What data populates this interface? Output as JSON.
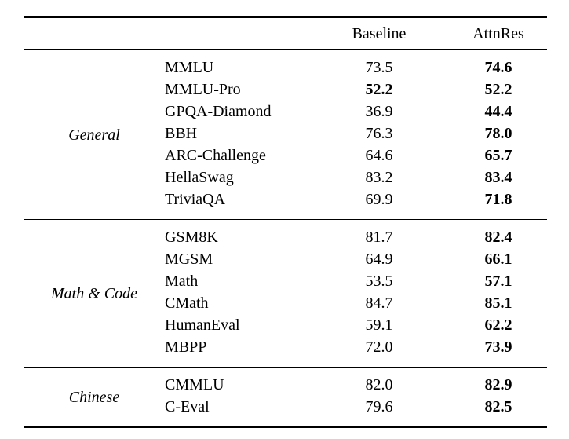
{
  "table": {
    "columns": {
      "group": "",
      "benchmark": "",
      "baseline": "Baseline",
      "attnres": "AttnRes"
    },
    "groups": [
      {
        "label": "General",
        "rows": [
          {
            "name": "MMLU",
            "baseline": "73.5",
            "baseline_bold": false,
            "attnres": "74.6",
            "attnres_bold": true
          },
          {
            "name": "MMLU-Pro",
            "baseline": "52.2",
            "baseline_bold": true,
            "attnres": "52.2",
            "attnres_bold": true
          },
          {
            "name": "GPQA-Diamond",
            "baseline": "36.9",
            "baseline_bold": false,
            "attnres": "44.4",
            "attnres_bold": true
          },
          {
            "name": "BBH",
            "baseline": "76.3",
            "baseline_bold": false,
            "attnres": "78.0",
            "attnres_bold": true
          },
          {
            "name": "ARC-Challenge",
            "baseline": "64.6",
            "baseline_bold": false,
            "attnres": "65.7",
            "attnres_bold": true
          },
          {
            "name": "HellaSwag",
            "baseline": "83.2",
            "baseline_bold": false,
            "attnres": "83.4",
            "attnres_bold": true
          },
          {
            "name": "TriviaQA",
            "baseline": "69.9",
            "baseline_bold": false,
            "attnres": "71.8",
            "attnres_bold": true
          }
        ]
      },
      {
        "label": "Math & Code",
        "rows": [
          {
            "name": "GSM8K",
            "baseline": "81.7",
            "baseline_bold": false,
            "attnres": "82.4",
            "attnres_bold": true
          },
          {
            "name": "MGSM",
            "baseline": "64.9",
            "baseline_bold": false,
            "attnres": "66.1",
            "attnres_bold": true
          },
          {
            "name": "Math",
            "baseline": "53.5",
            "baseline_bold": false,
            "attnres": "57.1",
            "attnres_bold": true
          },
          {
            "name": "CMath",
            "baseline": "84.7",
            "baseline_bold": false,
            "attnres": "85.1",
            "attnres_bold": true
          },
          {
            "name": "HumanEval",
            "baseline": "59.1",
            "baseline_bold": false,
            "attnres": "62.2",
            "attnres_bold": true
          },
          {
            "name": "MBPP",
            "baseline": "72.0",
            "baseline_bold": false,
            "attnres": "73.9",
            "attnres_bold": true
          }
        ]
      },
      {
        "label": "Chinese",
        "rows": [
          {
            "name": "CMMLU",
            "baseline": "82.0",
            "baseline_bold": false,
            "attnres": "82.9",
            "attnres_bold": true
          },
          {
            "name": "C-Eval",
            "baseline": "79.6",
            "baseline_bold": false,
            "attnres": "82.5",
            "attnres_bold": true
          }
        ]
      }
    ]
  }
}
